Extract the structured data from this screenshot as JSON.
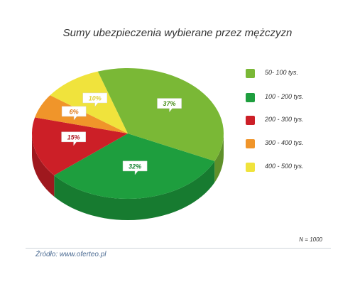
{
  "chart_data": {
    "type": "pie",
    "title": "Sumy ubezpieczenia wybierane przez mężczyzn",
    "categories": [
      "50- 100 tys.",
      "100 - 200 tys.",
      "200 - 300 tys.",
      "300 - 400 tys.",
      "400 - 500 tys."
    ],
    "values": [
      37,
      32,
      15,
      6,
      10
    ],
    "data_labels": [
      "37%",
      "32%",
      "15%",
      "6%",
      "10%"
    ],
    "colors": [
      "#7ab836",
      "#1e9e3e",
      "#cc1f27",
      "#f0952a",
      "#f0e33c"
    ],
    "label_colors": [
      "#4a8f1c",
      "#1a8436",
      "#b01c26",
      "#e07a18",
      "#e0d13a"
    ],
    "legend_position": "right",
    "note": "N = 1000"
  },
  "source": "Źródło: www.oferteo.pl"
}
